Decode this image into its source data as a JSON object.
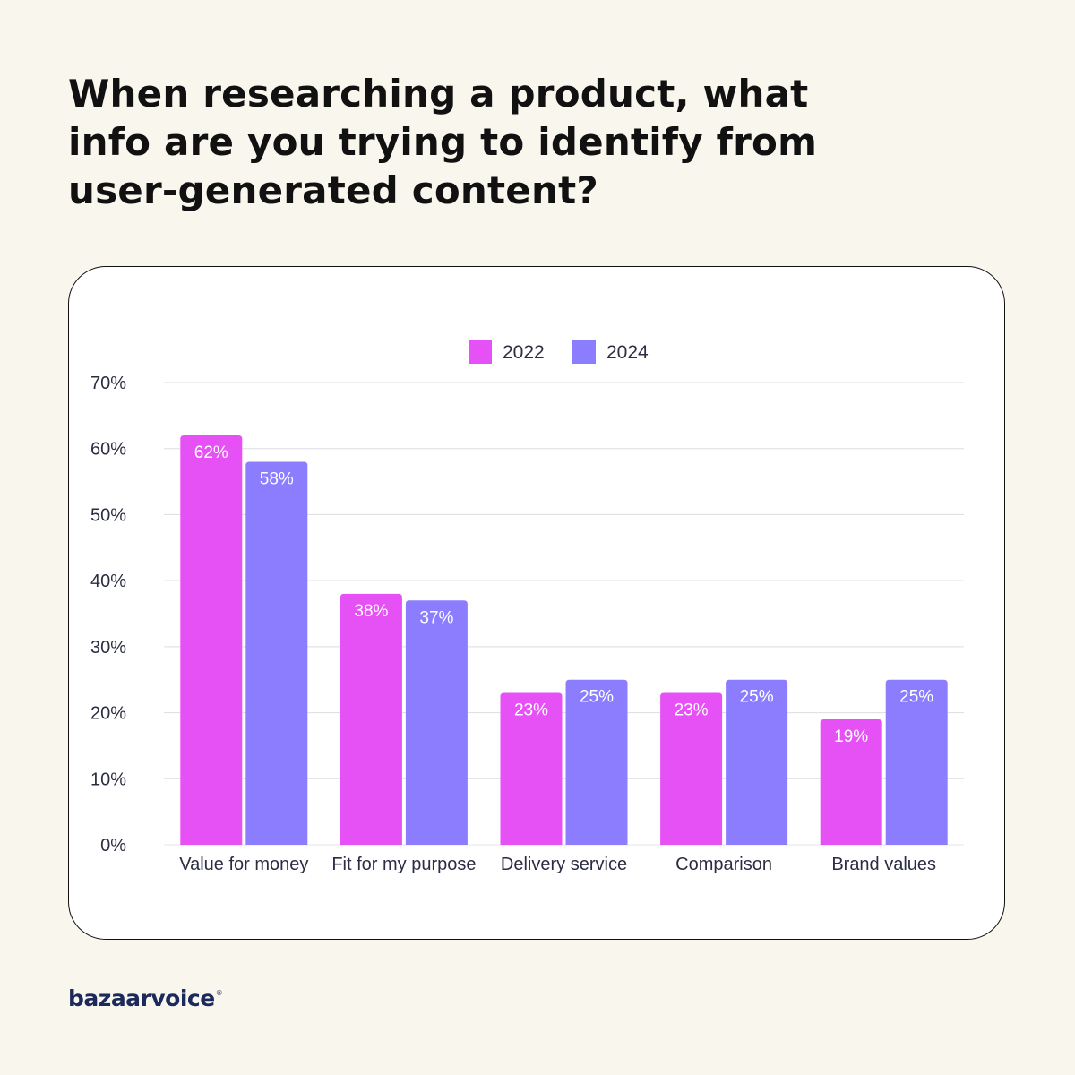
{
  "headline": "When researching a product, what info are you trying to identify from user-generated content?",
  "brand": {
    "name": "bazaarvoice",
    "mark": "®"
  },
  "chart_data": {
    "type": "bar",
    "title": "",
    "xlabel": "",
    "ylabel": "",
    "ylim": [
      0,
      70
    ],
    "yticks": [
      0,
      10,
      20,
      30,
      40,
      50,
      60,
      70
    ],
    "ytick_labels": [
      "0%",
      "10%",
      "20%",
      "30%",
      "40%",
      "50%",
      "60%",
      "70%"
    ],
    "grid": true,
    "legend": "top-center",
    "categories": [
      "Value for money",
      "Fit for my purpose",
      "Delivery service",
      "Comparison",
      "Brand values"
    ],
    "series": [
      {
        "name": "2022",
        "color": "#e651f6",
        "values": [
          62,
          38,
          23,
          23,
          19
        ],
        "labels": [
          "62%",
          "38%",
          "23%",
          "23%",
          "19%"
        ]
      },
      {
        "name": "2024",
        "color": "#8c7dff",
        "values": [
          58,
          37,
          25,
          25,
          25
        ],
        "labels": [
          "58%",
          "37%",
          "25%",
          "25%",
          "25%"
        ]
      }
    ]
  }
}
